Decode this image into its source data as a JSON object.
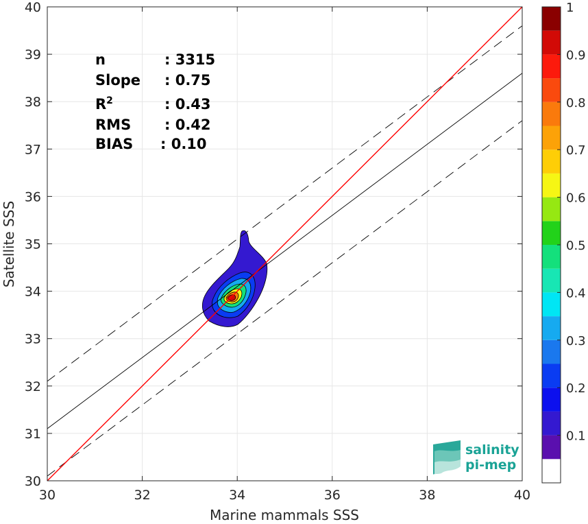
{
  "chart_data": {
    "type": "contour",
    "xlabel": "Marine mammals SSS",
    "ylabel": "Satellite SSS",
    "xlim": [
      30,
      40
    ],
    "ylim": [
      30,
      40
    ],
    "xticks": [
      "30",
      "32",
      "34",
      "36",
      "38",
      "40"
    ],
    "yticks": [
      "30",
      "31",
      "32",
      "33",
      "34",
      "35",
      "36",
      "37",
      "38",
      "39",
      "40"
    ],
    "grid": true,
    "stats": [
      {
        "key": "n",
        "sep": ": ",
        "value": "3315"
      },
      {
        "key": "Slope",
        "sep": ": ",
        "value": "0.75"
      },
      {
        "key": "R",
        "sup": "2",
        "sep": ": ",
        "value": "0.43"
      },
      {
        "key": "RMS",
        "sep": ": ",
        "value": "0.42"
      },
      {
        "key": "BIAS",
        "sep": ": ",
        "value": "0.10"
      }
    ],
    "lines": {
      "one_to_one": {
        "x": [
          30,
          40
        ],
        "y": [
          30,
          40
        ],
        "color": "#ff0000"
      },
      "regression": {
        "x": [
          30,
          40
        ],
        "y": [
          31.1,
          38.6
        ],
        "color": "#000000"
      },
      "upper_bound": {
        "x": [
          30,
          40
        ],
        "y": [
          32.1,
          39.6
        ],
        "color": "#000000",
        "dash": true
      },
      "lower_bound": {
        "x": [
          30,
          40
        ],
        "y": [
          30.1,
          37.6
        ],
        "color": "#000000",
        "dash": true
      }
    },
    "density_peak": {
      "x": 33.85,
      "y": 33.85
    },
    "colorbar": {
      "ticks": [
        "0.1",
        "0.2",
        "0.3",
        "0.4",
        "0.5",
        "0.6",
        "0.7",
        "0.8",
        "0.9",
        "1"
      ],
      "levels": [
        {
          "from": 0.0,
          "to": 0.05,
          "color": "#ffffff"
        },
        {
          "from": 0.05,
          "to": 0.1,
          "color": "#5a0fae"
        },
        {
          "from": 0.1,
          "to": 0.15,
          "color": "#3419d0"
        },
        {
          "from": 0.15,
          "to": 0.2,
          "color": "#0c10ee"
        },
        {
          "from": 0.2,
          "to": 0.25,
          "color": "#0a3cf2"
        },
        {
          "from": 0.25,
          "to": 0.3,
          "color": "#1a78ee"
        },
        {
          "from": 0.3,
          "to": 0.35,
          "color": "#16aaf0"
        },
        {
          "from": 0.35,
          "to": 0.4,
          "color": "#00e6f4"
        },
        {
          "from": 0.4,
          "to": 0.45,
          "color": "#18e6b4"
        },
        {
          "from": 0.45,
          "to": 0.5,
          "color": "#14e07c"
        },
        {
          "from": 0.5,
          "to": 0.55,
          "color": "#22d21a"
        },
        {
          "from": 0.55,
          "to": 0.6,
          "color": "#96e812"
        },
        {
          "from": 0.6,
          "to": 0.65,
          "color": "#f6f614"
        },
        {
          "from": 0.65,
          "to": 0.7,
          "color": "#fece06"
        },
        {
          "from": 0.7,
          "to": 0.75,
          "color": "#fca208"
        },
        {
          "from": 0.75,
          "to": 0.8,
          "color": "#fa7a0c"
        },
        {
          "from": 0.8,
          "to": 0.85,
          "color": "#fa4a0e"
        },
        {
          "from": 0.85,
          "to": 0.9,
          "color": "#fc1a0c"
        },
        {
          "from": 0.9,
          "to": 0.95,
          "color": "#d20a06"
        },
        {
          "from": 0.95,
          "to": 1.0,
          "color": "#8a0000"
        }
      ]
    }
  },
  "logo": {
    "line1": "salinity",
    "line2": "pi-mep"
  }
}
